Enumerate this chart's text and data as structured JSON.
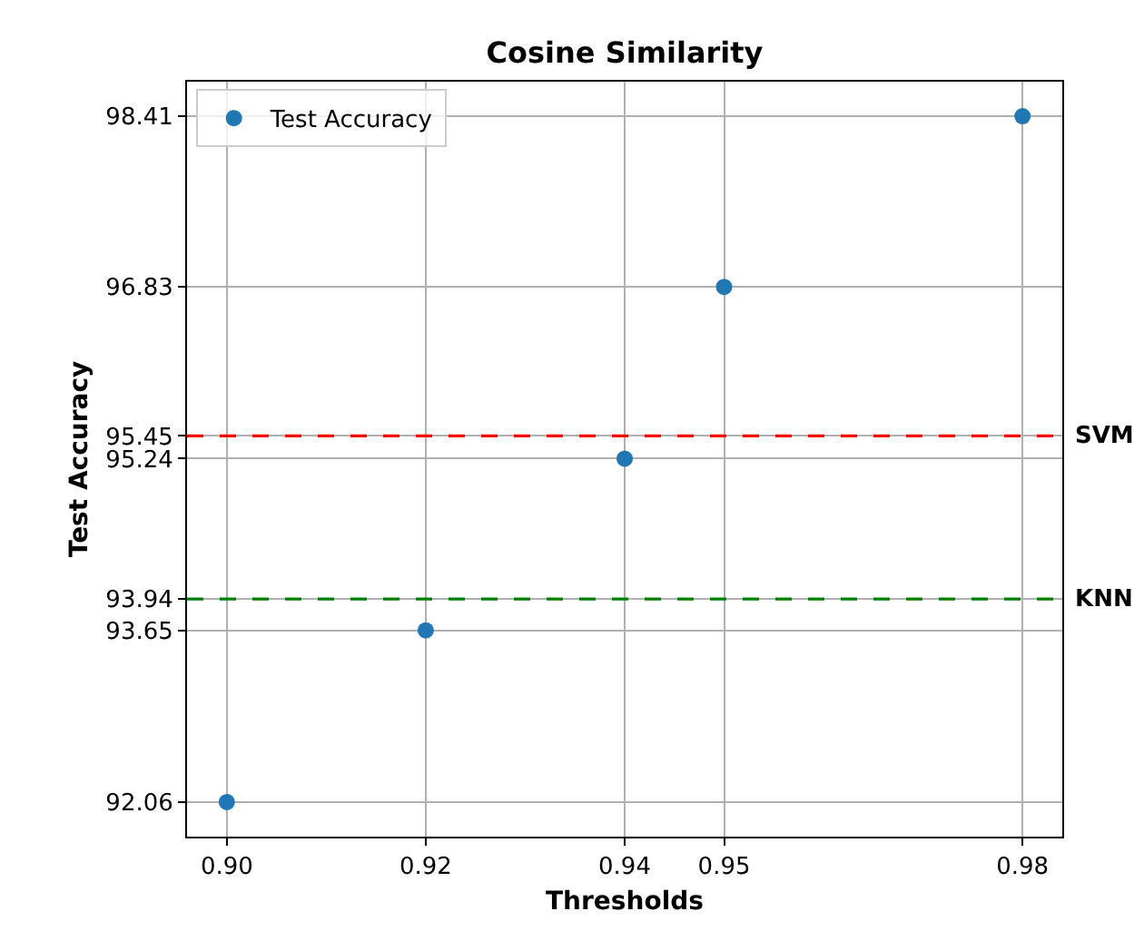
{
  "chart_data": {
    "type": "scatter",
    "title": "Cosine Similarity",
    "xlabel": "Thresholds",
    "ylabel": "Test Accuracy",
    "x": [
      0.9,
      0.92,
      0.94,
      0.95,
      0.98
    ],
    "series": [
      {
        "name": "Test Accuracy",
        "color": "#1f77b4",
        "values": [
          92.06,
          93.65,
          95.24,
          96.83,
          98.41
        ]
      }
    ],
    "xlim": [
      0.896,
      0.984
    ],
    "xticks": [
      {
        "value": 0.9,
        "label": "0.90"
      },
      0.92,
      0.94,
      0.95,
      0.98
    ],
    "ylim": [
      91.74,
      98.73
    ],
    "yticks": [
      92.06,
      93.65,
      93.94,
      95.24,
      95.45,
      96.83,
      98.41
    ],
    "ref_lines": [
      {
        "axis": "y",
        "value": 95.45,
        "label": "SVM",
        "color": "#ff0000",
        "line_style": "dashed"
      },
      {
        "axis": "y",
        "value": 93.94,
        "label": "KNN",
        "color": "#008000",
        "line_style": "dashed"
      }
    ],
    "grid": true,
    "legend": "top left",
    "marker": "circle"
  }
}
